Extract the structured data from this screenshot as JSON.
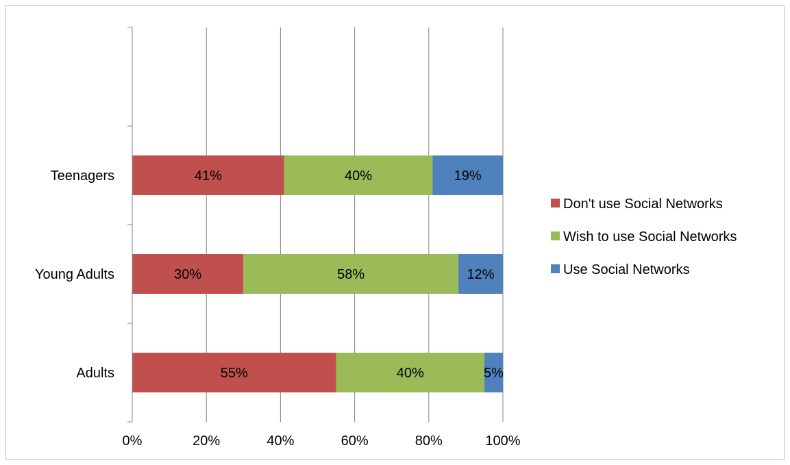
{
  "chart_data": {
    "type": "bar",
    "orientation": "horizontal",
    "stacked": "percent",
    "categories": [
      "Adults",
      "Young Adults",
      "Teenagers"
    ],
    "series": [
      {
        "name": "Don't use Social Networks",
        "values": [
          55,
          30,
          41
        ],
        "labels": [
          "55%",
          "30%",
          "41%"
        ],
        "color": "#c0504d"
      },
      {
        "name": "Wish to use Social Networks",
        "values": [
          40,
          58,
          40
        ],
        "labels": [
          "40%",
          "58%",
          "40%"
        ],
        "color": "#9bbb59"
      },
      {
        "name": "Use Social Networks",
        "values": [
          5,
          12,
          19
        ],
        "labels": [
          "5%",
          "12%",
          "19%"
        ],
        "color": "#4f81bd"
      }
    ],
    "xlim": [
      0,
      100
    ],
    "xticks": [
      0,
      20,
      40,
      60,
      80,
      100
    ],
    "xtick_labels": [
      "0%",
      "20%",
      "40%",
      "60%",
      "80%",
      "100%"
    ],
    "grid": true,
    "gridline_color": "#868686",
    "legend_position": "right",
    "title": "",
    "xlabel": "",
    "ylabel": ""
  }
}
